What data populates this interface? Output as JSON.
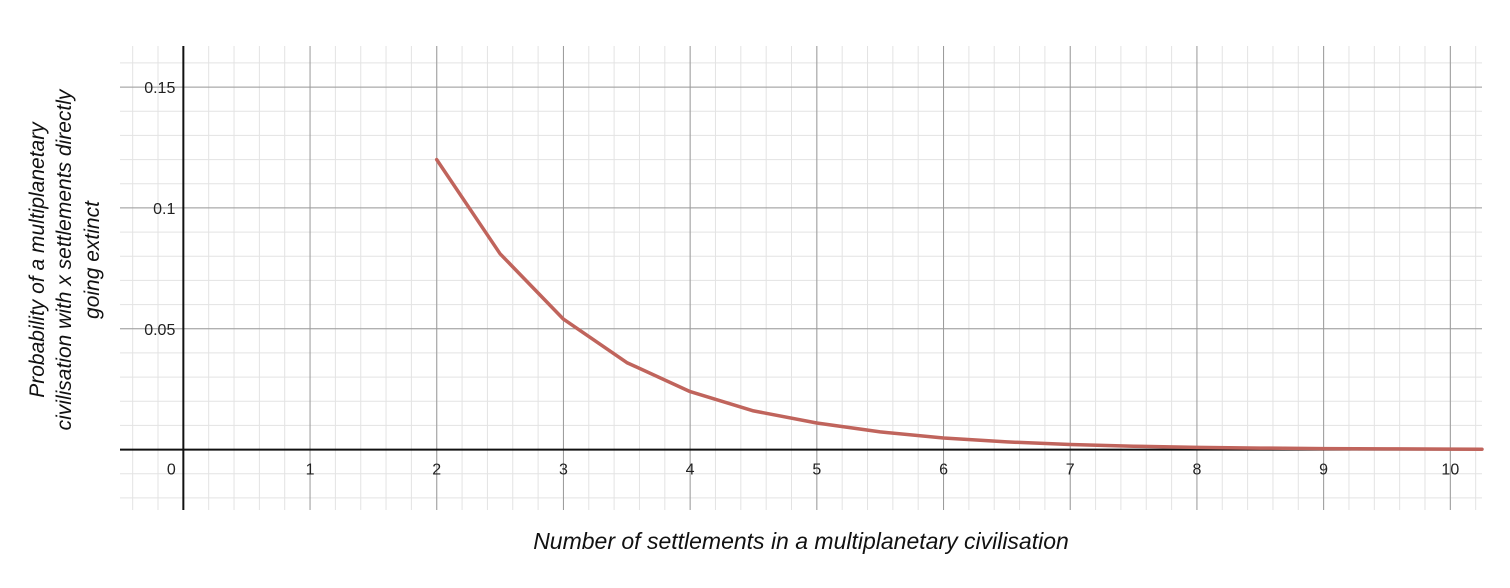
{
  "chart_data": {
    "type": "line",
    "title": "",
    "xlabel": "Number of settlements in a multiplanetary civilisation",
    "ylabel": "Probability of a multiplanetary civilisation with x settlements directly going extinct",
    "xlim": [
      -0.5,
      10.25
    ],
    "ylim": [
      -0.025,
      0.167
    ],
    "x_ticks": [
      0,
      1,
      2,
      3,
      4,
      5,
      6,
      7,
      8,
      9,
      10
    ],
    "x_tick_labels": [
      "0",
      "1",
      "2",
      "3",
      "4",
      "5",
      "6",
      "7",
      "8",
      "9",
      "10"
    ],
    "y_ticks": [
      0.05,
      0.1,
      0.15
    ],
    "y_tick_labels": [
      "0.05",
      "0.1",
      "0.15"
    ],
    "grid": true,
    "series": [
      {
        "color": "#c0645c",
        "x": [
          2,
          2.5,
          3,
          3.5,
          4,
          4.5,
          5,
          5.5,
          6,
          6.5,
          7,
          7.5,
          8,
          8.5,
          9,
          9.5,
          10,
          10.25
        ],
        "y": [
          0.12,
          0.081,
          0.054,
          0.036,
          0.024,
          0.016,
          0.011,
          0.0073,
          0.0048,
          0.0032,
          0.0021,
          0.0014,
          0.0009,
          0.0006,
          0.0004,
          0.0003,
          0.0002,
          0.00015
        ]
      }
    ]
  }
}
